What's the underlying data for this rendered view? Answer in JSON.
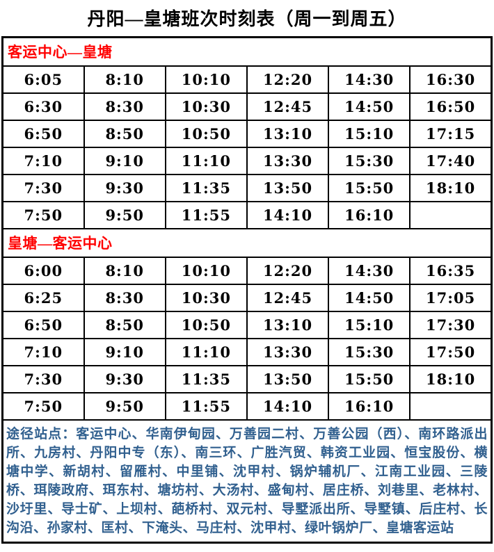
{
  "title": "丹阳—皇塘班次时刻表（周一到周五）",
  "colors": {
    "section_header_text": "#ff0000",
    "notes_text": "#31608f",
    "table_border": "#000000",
    "background": "#ffffff",
    "time_text": "#000000"
  },
  "sections": [
    {
      "header": "客运中心—皇塘",
      "rows": [
        [
          "6:05",
          "8:10",
          "10:10",
          "12:20",
          "14:30",
          "16:30"
        ],
        [
          "6:30",
          "8:30",
          "10:30",
          "12:45",
          "14:50",
          "16:50"
        ],
        [
          "6:50",
          "8:50",
          "10:50",
          "13:10",
          "15:10",
          "17:15"
        ],
        [
          "7:10",
          "9:10",
          "11:10",
          "13:30",
          "15:30",
          "17:40"
        ],
        [
          "7:30",
          "9:30",
          "11:35",
          "13:50",
          "15:50",
          "18:10"
        ],
        [
          "7:50",
          "9:50",
          "11:55",
          "14:10",
          "16:10",
          ""
        ]
      ]
    },
    {
      "header": "皇塘—客运中心",
      "rows": [
        [
          "6:00",
          "8:10",
          "10:10",
          "12:20",
          "14:30",
          "16:35"
        ],
        [
          "6:25",
          "8:30",
          "10:30",
          "12:45",
          "14:50",
          "17:05"
        ],
        [
          "6:50",
          "8:50",
          "10:50",
          "13:10",
          "15:10",
          "17:30"
        ],
        [
          "7:10",
          "9:10",
          "11:10",
          "13:30",
          "15:30",
          "17:50"
        ],
        [
          "7:30",
          "9:30",
          "11:35",
          "13:50",
          "15:50",
          "18:10"
        ],
        [
          "7:50",
          "9:50",
          "11:55",
          "14:10",
          "16:10",
          ""
        ]
      ]
    }
  ],
  "notes": {
    "label": "途径站点：",
    "text": "客运中心、华南伊甸园、万善园二村、万善公园（西）、南环路派出所、九房村、丹阳中专（东）、南三环、广胜汽贸、韩资工业园、恒宝股份、横塘中学、新胡村、留雁村、中里铺、沈甲村、锅炉辅机厂、江南工业园、三陵桥、珥陵政府、珥东村、塘坊村、大汤村、盛甸村、居庄桥、刘巷里、老林村、沙圩里、导士矿、上坝村、葩桥村、双元村、导墅派出所、导墅镇、后庄村、长沟沿、孙家村、匡村、下淹头、马庄村、沈甲村、绿叶锅炉厂、皇塘客运站"
  }
}
